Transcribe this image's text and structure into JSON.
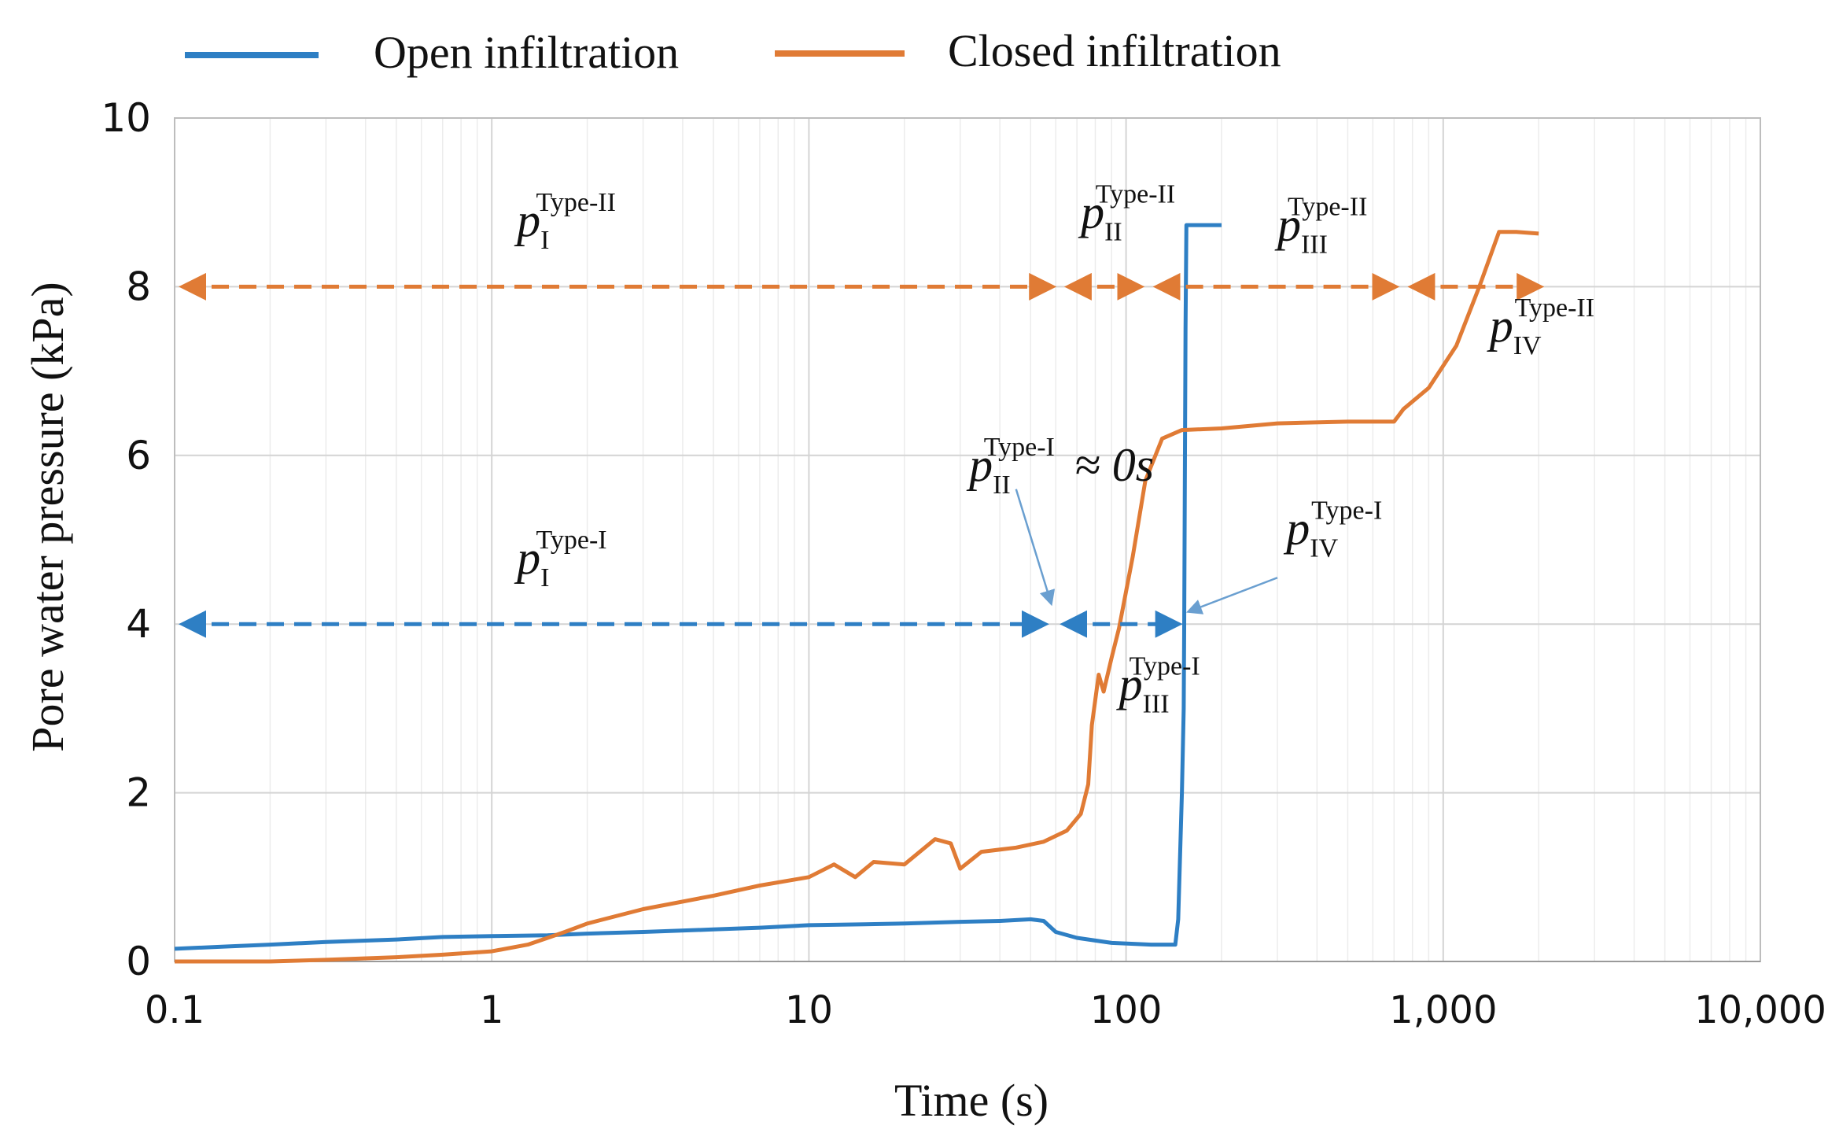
{
  "chart_data": {
    "type": "line",
    "xscale": "log",
    "xlim": [
      0.1,
      10000
    ],
    "ylim": [
      0,
      10
    ],
    "xticks": [
      {
        "value": 0.1,
        "label": "0.1"
      },
      {
        "value": 1,
        "label": "1"
      },
      {
        "value": 10,
        "label": "10"
      },
      {
        "value": 100,
        "label": "100"
      },
      {
        "value": 1000,
        "label": "1,000"
      },
      {
        "value": 10000,
        "label": "10,000"
      }
    ],
    "yticks": [
      {
        "value": 0,
        "label": "0"
      },
      {
        "value": 2,
        "label": "2"
      },
      {
        "value": 4,
        "label": "4"
      },
      {
        "value": 6,
        "label": "6"
      },
      {
        "value": 8,
        "label": "8"
      },
      {
        "value": 10,
        "label": "10"
      }
    ],
    "xlabel": "Time (s)",
    "ylabel": "Pore water pressure (kPa)",
    "grid": true,
    "legend_position": "top",
    "series": [
      {
        "name": "Open infiltration",
        "color": "#2e7fc4",
        "points": [
          [
            0.1,
            0.15
          ],
          [
            0.15,
            0.18
          ],
          [
            0.2,
            0.2
          ],
          [
            0.3,
            0.23
          ],
          [
            0.5,
            0.26
          ],
          [
            0.7,
            0.29
          ],
          [
            1,
            0.3
          ],
          [
            1.5,
            0.31
          ],
          [
            2,
            0.33
          ],
          [
            3,
            0.35
          ],
          [
            5,
            0.38
          ],
          [
            7,
            0.4
          ],
          [
            10,
            0.43
          ],
          [
            15,
            0.44
          ],
          [
            20,
            0.45
          ],
          [
            30,
            0.47
          ],
          [
            40,
            0.48
          ],
          [
            50,
            0.5
          ],
          [
            55,
            0.48
          ],
          [
            60,
            0.35
          ],
          [
            70,
            0.28
          ],
          [
            90,
            0.22
          ],
          [
            120,
            0.2
          ],
          [
            143,
            0.2
          ],
          [
            146,
            0.5
          ],
          [
            150,
            2.0
          ],
          [
            152,
            3.0
          ],
          [
            152.5,
            3.95
          ],
          [
            154,
            7.5
          ],
          [
            155,
            8.73
          ],
          [
            170,
            8.73
          ],
          [
            200,
            8.73
          ]
        ]
      },
      {
        "name": "Closed infiltration",
        "color": "#e07b35",
        "points": [
          [
            0.1,
            0.0
          ],
          [
            0.2,
            0.0
          ],
          [
            0.3,
            0.02
          ],
          [
            0.5,
            0.05
          ],
          [
            0.7,
            0.08
          ],
          [
            1,
            0.12
          ],
          [
            1.3,
            0.2
          ],
          [
            1.7,
            0.35
          ],
          [
            2,
            0.45
          ],
          [
            3,
            0.62
          ],
          [
            5,
            0.78
          ],
          [
            7,
            0.9
          ],
          [
            10,
            1.0
          ],
          [
            12,
            1.15
          ],
          [
            14,
            1.0
          ],
          [
            16,
            1.18
          ],
          [
            20,
            1.15
          ],
          [
            25,
            1.45
          ],
          [
            28,
            1.4
          ],
          [
            30,
            1.1
          ],
          [
            35,
            1.3
          ],
          [
            45,
            1.35
          ],
          [
            55,
            1.42
          ],
          [
            65,
            1.55
          ],
          [
            72,
            1.75
          ],
          [
            76,
            2.1
          ],
          [
            78,
            2.8
          ],
          [
            82,
            3.4
          ],
          [
            85,
            3.2
          ],
          [
            90,
            3.6
          ],
          [
            95,
            3.95
          ],
          [
            105,
            4.8
          ],
          [
            115,
            5.7
          ],
          [
            130,
            6.2
          ],
          [
            150,
            6.3
          ],
          [
            200,
            6.32
          ],
          [
            300,
            6.38
          ],
          [
            500,
            6.4
          ],
          [
            700,
            6.4
          ],
          [
            750,
            6.55
          ],
          [
            900,
            6.8
          ],
          [
            1100,
            7.3
          ],
          [
            1300,
            8.0
          ],
          [
            1500,
            8.65
          ],
          [
            1700,
            8.65
          ],
          [
            2000,
            8.63
          ]
        ]
      }
    ],
    "annotations": [
      {
        "id": "closed-phase-1",
        "base": "p",
        "sub": "I",
        "sup": "Type-II",
        "x_start": 0.1,
        "x_end": 58,
        "y": 8,
        "label_x": 1.2,
        "label_y": 8.6,
        "color": "#e07b35"
      },
      {
        "id": "closed-phase-2",
        "base": "p",
        "sub": "II",
        "sup": "Type-II",
        "x_start": 62,
        "x_end": 110,
        "y": 8,
        "label_x": 72,
        "label_y": 8.7,
        "color": "#e07b35"
      },
      {
        "id": "closed-phase-3",
        "base": "p",
        "sub": "III",
        "sup": "Type-II",
        "x_start": 118,
        "x_end": 700,
        "y": 8,
        "label_x": 300,
        "label_y": 8.55,
        "color": "#e07b35"
      },
      {
        "id": "closed-phase-4",
        "base": "p",
        "sub": "IV",
        "sup": "Type-II",
        "x_start": 750,
        "x_end": 2000,
        "y": 8,
        "label_x": 1400,
        "label_y": 7.35,
        "color": "#e07b35"
      },
      {
        "id": "open-phase-1",
        "base": "p",
        "sub": "I",
        "sup": "Type-I",
        "x_start": 0.1,
        "x_end": 55,
        "y": 4,
        "label_x": 1.2,
        "label_y": 4.6,
        "color": "#2e7fc4"
      },
      {
        "id": "open-phase-3",
        "base": "p",
        "sub": "III",
        "sup": "Type-I",
        "x_start": 60,
        "x_end": 145,
        "y": 4,
        "label_x": 95,
        "label_y": 3.1,
        "color": "#2e7fc4"
      },
      {
        "id": "open-phase-2",
        "base": "p",
        "sub": "II",
        "sup": "Type-I",
        "suffix": " ≈ 0s",
        "label_x": 32,
        "label_y": 5.7,
        "arrow_from": [
          45,
          5.6
        ],
        "arrow_to": [
          58,
          4.25
        ],
        "color": "#111111"
      },
      {
        "id": "open-phase-4",
        "base": "p",
        "sub": "IV",
        "sup": "Type-I",
        "label_x": 320,
        "label_y": 4.95,
        "arrow_from": [
          300,
          4.55
        ],
        "arrow_to": [
          158,
          4.15
        ],
        "color": "#111111"
      }
    ]
  }
}
